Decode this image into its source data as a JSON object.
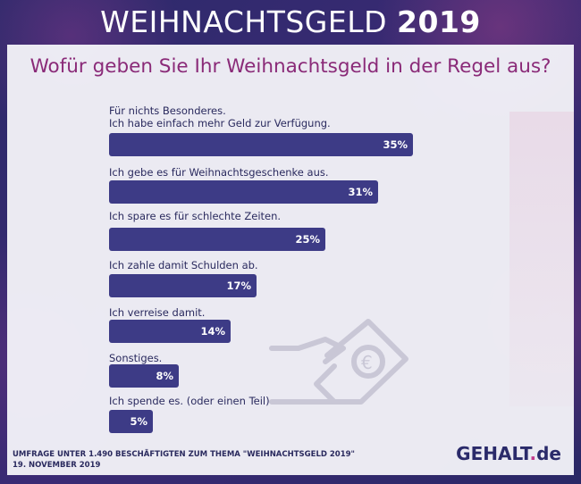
{
  "header": {
    "title_main": "WEIHNACHTSGELD",
    "title_year": "2019"
  },
  "question": "Wofür geben Sie Ihr Weihnachtsgeld in der Regel aus?",
  "chart_data": {
    "type": "bar",
    "orientation": "horizontal",
    "categories": [
      [
        "Für nichts Besonderes.",
        "Ich habe einfach mehr Geld zur Verfügung."
      ],
      [
        "Ich gebe es für Weihnachtsgeschenke aus."
      ],
      [
        "Ich spare es für schlechte Zeiten."
      ],
      [
        "Ich zahle damit Schulden ab."
      ],
      [
        "Ich verreise damit."
      ],
      [
        "Sonstiges."
      ],
      [
        "Ich spende es. (oder einen Teil)"
      ]
    ],
    "values": [
      35,
      31,
      25,
      17,
      14,
      8,
      5
    ],
    "value_labels": [
      "35%",
      "31%",
      "25%",
      "17%",
      "14%",
      "8%",
      "5%"
    ],
    "xlim": [
      0,
      100
    ]
  },
  "footer": {
    "line1": "UMFRAGE UNTER 1.490 BESCHÄFTIGTEN ZUM THEMA \"WEIHNACHTSGELD 2019\"",
    "line2": "19. NOVEMBER 2019"
  },
  "logo": {
    "main": "GEHALT",
    "dot": ".",
    "suffix": "de"
  },
  "colors": {
    "bar": "#3d3b86",
    "question": "#8a2a78",
    "accent": "#c33a8c"
  }
}
